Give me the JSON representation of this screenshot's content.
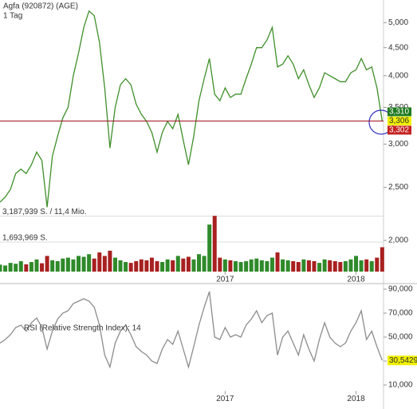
{
  "chart_data": [
    {
      "type": "line",
      "title": "Agfa (920872) (AGE)",
      "subtitle": "1 Tag",
      "log_scale": true,
      "xlim": [
        2015.28,
        2018.21
      ],
      "ylim": [
        2000,
        5500
      ],
      "yticks": [
        {
          "value": 2000,
          "label": "2,000"
        },
        {
          "value": 2500,
          "label": "2,500"
        },
        {
          "value": 3000,
          "label": "3,000"
        },
        {
          "value": 3500,
          "label": "3,500"
        },
        {
          "value": 4000,
          "label": "4,000"
        },
        {
          "value": 4500,
          "label": "4,500"
        },
        {
          "value": 5000,
          "label": "5,000"
        }
      ],
      "x": [
        2015.28,
        2015.32,
        2015.36,
        2015.4,
        2015.44,
        2015.48,
        2015.52,
        2015.56,
        2015.6,
        2015.64,
        2015.68,
        2015.72,
        2015.76,
        2015.8,
        2015.84,
        2015.88,
        2015.92,
        2015.96,
        2016,
        2016.04,
        2016.08,
        2016.12,
        2016.16,
        2016.2,
        2016.24,
        2016.28,
        2016.32,
        2016.36,
        2016.4,
        2016.44,
        2016.48,
        2016.52,
        2016.56,
        2016.6,
        2016.64,
        2016.68,
        2016.72,
        2016.76,
        2016.8,
        2016.84,
        2016.88,
        2016.92,
        2016.96,
        2017,
        2017.04,
        2017.08,
        2017.12,
        2017.16,
        2017.2,
        2017.24,
        2017.28,
        2017.32,
        2017.36,
        2017.4,
        2017.44,
        2017.48,
        2017.52,
        2017.56,
        2017.6,
        2017.64,
        2017.68,
        2017.72,
        2017.76,
        2017.8,
        2017.84,
        2017.88,
        2017.92,
        2017.96,
        2018,
        2018.04,
        2018.08,
        2018.12,
        2018.16,
        2018.2
      ],
      "series": [
        {
          "name": "Agfa",
          "color": "#3f8f2a",
          "values": [
            2350,
            2400,
            2480,
            2650,
            2700,
            2650,
            2750,
            2900,
            2800,
            2300,
            2850,
            3100,
            3350,
            3500,
            4000,
            4400,
            4900,
            5250,
            5150,
            4600,
            3800,
            2950,
            3500,
            3850,
            3950,
            3850,
            3550,
            3400,
            3300,
            3150,
            2900,
            3150,
            3300,
            3200,
            3400,
            3050,
            2750,
            3100,
            3600,
            3950,
            4300,
            3700,
            3600,
            3800,
            3650,
            3700,
            3700,
            3950,
            4200,
            4500,
            4500,
            4650,
            4900,
            4150,
            4200,
            4350,
            4200,
            3950,
            4100,
            3850,
            3650,
            3800,
            4050,
            4000,
            3950,
            3900,
            3900,
            4050,
            4100,
            4300,
            4100,
            4150,
            3800,
            3306
          ]
        }
      ],
      "reference_line": {
        "value": 3306,
        "color": "#a01020"
      },
      "price_labels": [
        {
          "value": 3310,
          "label": "3,310",
          "color": "#1f7a1f"
        },
        {
          "value": 3306,
          "label": "3,306",
          "color": "#f0f000"
        },
        {
          "value": 3302,
          "label": "3,302",
          "color": "#c42020"
        }
      ]
    },
    {
      "type": "bar",
      "xlim": [
        2015.28,
        2018.21
      ],
      "ylim": [
        0,
        3600000
      ],
      "yticks": [
        {
          "value": 1693969,
          "label": "1,693,969 S."
        },
        {
          "value": 3187939,
          "label": "3,187,939 S. / 11,4 Mio."
        }
      ],
      "xticks": [
        2017,
        2018
      ],
      "colors": {
        "up": "#2f8a2a",
        "down": "#a82020"
      },
      "x": [
        2015.28,
        2015.32,
        2015.36,
        2015.4,
        2015.44,
        2015.48,
        2015.52,
        2015.56,
        2015.6,
        2015.64,
        2015.68,
        2015.72,
        2015.76,
        2015.8,
        2015.84,
        2015.88,
        2015.92,
        2015.96,
        2016,
        2016.04,
        2016.08,
        2016.12,
        2016.16,
        2016.2,
        2016.24,
        2016.28,
        2016.32,
        2016.36,
        2016.4,
        2016.44,
        2016.48,
        2016.52,
        2016.56,
        2016.6,
        2016.64,
        2016.68,
        2016.72,
        2016.76,
        2016.8,
        2016.84,
        2016.88,
        2016.92,
        2016.96,
        2017,
        2017.04,
        2017.08,
        2017.12,
        2017.16,
        2017.2,
        2017.24,
        2017.28,
        2017.32,
        2017.36,
        2017.4,
        2017.44,
        2017.48,
        2017.52,
        2017.56,
        2017.6,
        2017.64,
        2017.68,
        2017.72,
        2017.76,
        2017.8,
        2017.84,
        2017.88,
        2017.92,
        2017.96,
        2018,
        2018.04,
        2018.08,
        2018.12,
        2018.16,
        2018.2
      ],
      "values": [
        400000,
        350000,
        500000,
        450000,
        600000,
        420000,
        550000,
        700000,
        480000,
        900000,
        650000,
        600000,
        750000,
        800000,
        700000,
        900000,
        850000,
        1000000,
        750000,
        1100000,
        900000,
        1200000,
        800000,
        650000,
        550000,
        500000,
        600000,
        700000,
        650000,
        800000,
        600000,
        550000,
        700000,
        650000,
        900000,
        750000,
        850000,
        700000,
        1000000,
        900000,
        2700000,
        3200000,
        800000,
        700000,
        650000,
        600000,
        550000,
        600000,
        700000,
        750000,
        650000,
        600000,
        800000,
        1100000,
        700000,
        650000,
        600000,
        550000,
        700000,
        650000,
        600000,
        500000,
        700000,
        650000,
        600000,
        550000,
        600000,
        700000,
        900000,
        650000,
        700000,
        600000,
        800000,
        1400000
      ]
    },
    {
      "type": "line",
      "title": "RSI (Relative Strength Index): 14",
      "xlim": [
        2015.28,
        2018.21
      ],
      "ylim": [
        5,
        95
      ],
      "yticks": [
        {
          "value": 10,
          "label": "10,000"
        },
        {
          "value": 30,
          "label": "30,000"
        },
        {
          "value": 50,
          "label": "50,000"
        },
        {
          "value": 70,
          "label": "70,000"
        },
        {
          "value": 90,
          "label": "90,000"
        }
      ],
      "xticks": [
        2017,
        2018
      ],
      "x": [
        2015.28,
        2015.32,
        2015.36,
        2015.4,
        2015.44,
        2015.48,
        2015.52,
        2015.56,
        2015.6,
        2015.64,
        2015.68,
        2015.72,
        2015.76,
        2015.8,
        2015.84,
        2015.88,
        2015.92,
        2015.96,
        2016,
        2016.04,
        2016.08,
        2016.12,
        2016.16,
        2016.2,
        2016.24,
        2016.28,
        2016.32,
        2016.36,
        2016.4,
        2016.44,
        2016.48,
        2016.52,
        2016.56,
        2016.6,
        2016.64,
        2016.68,
        2016.72,
        2016.76,
        2016.8,
        2016.84,
        2016.88,
        2016.92,
        2016.96,
        2017,
        2017.04,
        2017.08,
        2017.12,
        2017.16,
        2017.2,
        2017.24,
        2017.28,
        2017.32,
        2017.36,
        2017.4,
        2017.44,
        2017.48,
        2017.52,
        2017.56,
        2017.6,
        2017.64,
        2017.68,
        2017.72,
        2017.76,
        2017.8,
        2017.84,
        2017.88,
        2017.92,
        2017.96,
        2018,
        2018.04,
        2018.08,
        2018.12,
        2018.16,
        2018.2
      ],
      "series": [
        {
          "name": "RSI",
          "color": "#8c8c8c",
          "values": [
            45,
            48,
            52,
            58,
            60,
            55,
            62,
            66,
            58,
            40,
            55,
            65,
            70,
            72,
            78,
            80,
            82,
            80,
            75,
            60,
            35,
            25,
            45,
            55,
            60,
            52,
            42,
            38,
            35,
            30,
            28,
            40,
            48,
            44,
            55,
            40,
            25,
            42,
            60,
            75,
            88,
            50,
            48,
            58,
            50,
            52,
            50,
            60,
            65,
            72,
            62,
            68,
            70,
            35,
            50,
            55,
            45,
            35,
            52,
            40,
            30,
            48,
            62,
            50,
            45,
            42,
            45,
            55,
            62,
            72,
            48,
            55,
            42,
            30.5429
          ]
        }
      ],
      "current_label": {
        "value": 30.5429,
        "label": "30,5429",
        "color": "#f0f000"
      }
    }
  ]
}
